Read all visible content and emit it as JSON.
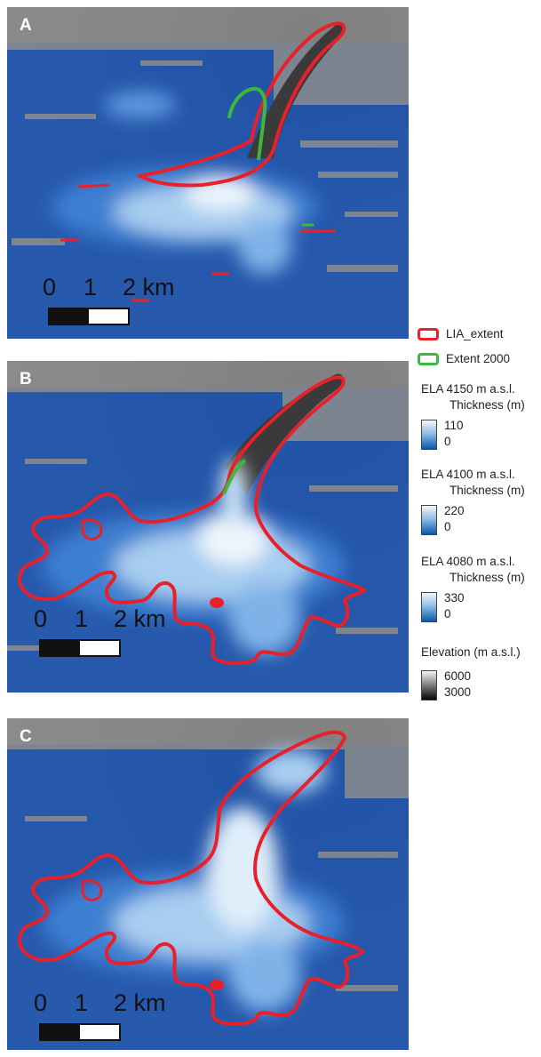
{
  "panels": [
    {
      "label": "A"
    },
    {
      "label": "B"
    },
    {
      "label": "C"
    }
  ],
  "scale_bar": {
    "ticks": [
      "0",
      "1",
      "2 km"
    ]
  },
  "legend": {
    "lia_extent": "LIA_extent",
    "extent_2000": "Extent 2000",
    "ela_4150": {
      "title": "ELA 4150 m a.s.l.",
      "sub": "Thickness (m)",
      "max": "110",
      "min": "0"
    },
    "ela_4100": {
      "title": "ELA 4100 m a.s.l.",
      "sub": "Thickness (m)",
      "max": "220",
      "min": "0"
    },
    "ela_4080": {
      "title": "ELA 4080 m a.s.l.",
      "sub": "Thickness (m)",
      "max": "330",
      "min": "0"
    },
    "elevation": {
      "title": "Elevation (m a.s.l.)",
      "max": "6000",
      "min": "3000"
    }
  },
  "colors": {
    "lia_outline": "#e8202a",
    "extent_2000_outline": "#3cb83c",
    "ice_blue": "#1f5fbf",
    "ice_white": "#eef5fb",
    "terrain_gray": "#6b6b6b"
  }
}
